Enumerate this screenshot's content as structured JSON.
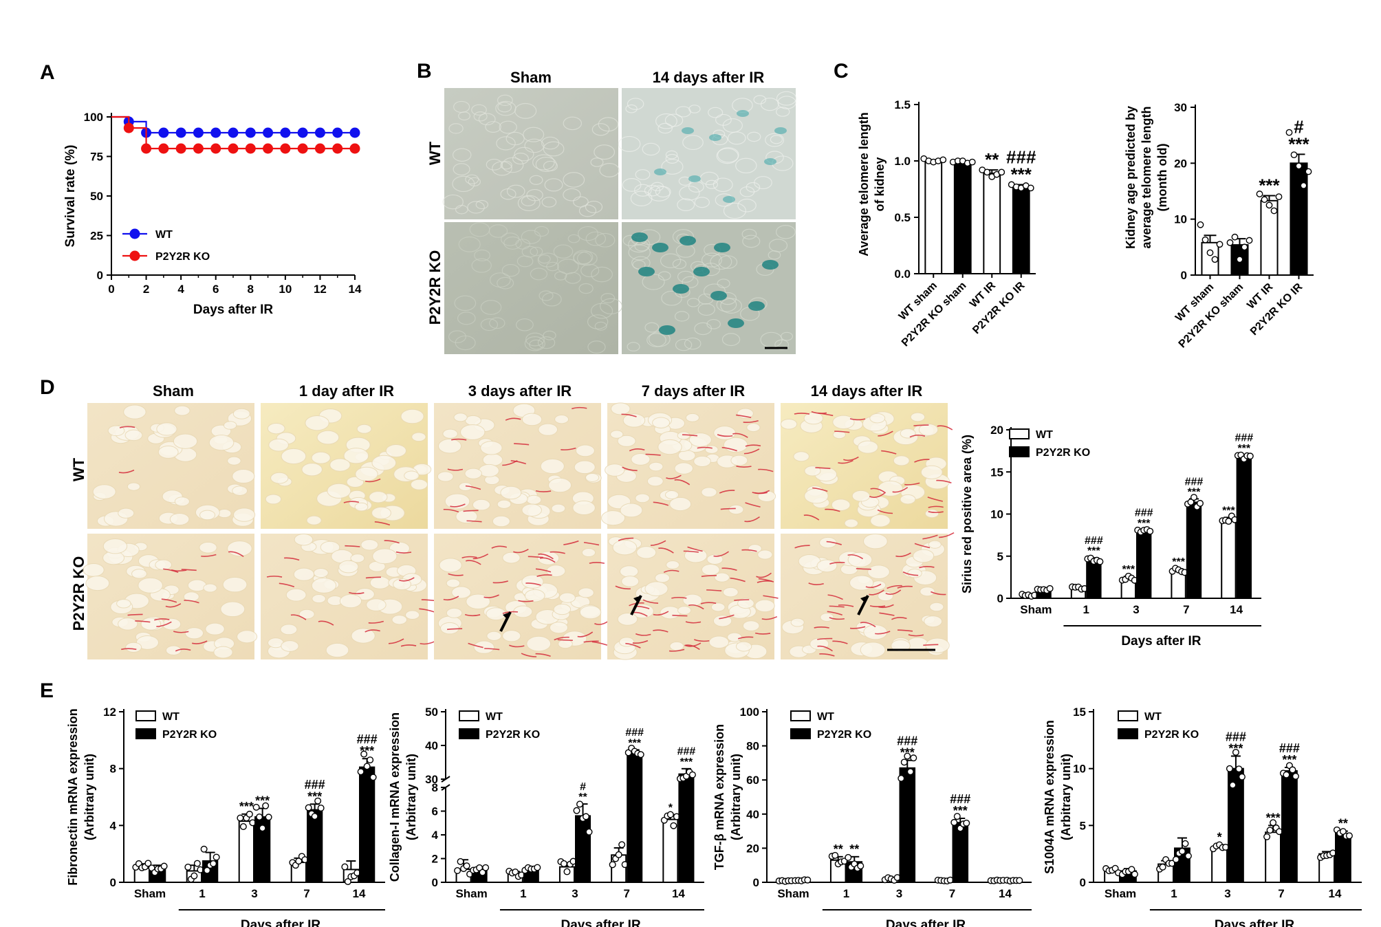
{
  "panel_labels": [
    "A",
    "B",
    "C",
    "D",
    "E"
  ],
  "panelB": {
    "col_headers": [
      "Sham",
      "14 days after IR"
    ],
    "row_headers": [
      "WT",
      "P2Y2R KO"
    ]
  },
  "panelD": {
    "col_headers": [
      "Sham",
      "1 day after IR",
      "3 days after IR",
      "7 days after IR",
      "14 days after IR"
    ],
    "row_headers": [
      "WT",
      "P2Y2R KO"
    ]
  },
  "colors": {
    "wt_line": "#1010ee",
    "ko_line": "#ee1111",
    "bar_ko": "#000000",
    "bar_wt": "#ffffff",
    "sirius_red": "#d42a3a",
    "xgal_blue": "#3aa6a8"
  },
  "chart_data": [
    {
      "id": "A",
      "type": "line",
      "xlabel": "Days after IR",
      "ylabel": "Survival rate (%)",
      "xlim": [
        0,
        14
      ],
      "ylim": [
        0,
        100
      ],
      "xticks": [
        "0",
        "2",
        "4",
        "6",
        "8",
        "10",
        "12",
        "14"
      ],
      "yticks": [
        "0",
        "25",
        "50",
        "75",
        "100"
      ],
      "legend": "bottom-left",
      "series": [
        {
          "name": "WT",
          "color": "#1010ee",
          "x": [
            1,
            2,
            3,
            4,
            5,
            6,
            7,
            8,
            9,
            10,
            11,
            12,
            13,
            14
          ],
          "y": [
            97,
            90,
            90,
            90,
            90,
            90,
            90,
            90,
            90,
            90,
            90,
            90,
            90,
            90
          ]
        },
        {
          "name": "P2Y2R KO",
          "color": "#ee1111",
          "x": [
            1,
            2,
            3,
            4,
            5,
            6,
            7,
            8,
            9,
            10,
            11,
            12,
            13,
            14
          ],
          "y": [
            93,
            80,
            80,
            80,
            80,
            80,
            80,
            80,
            80,
            80,
            80,
            80,
            80,
            80
          ]
        }
      ]
    },
    {
      "id": "C1",
      "type": "bar",
      "ylabel": "Average telomere length of kidney",
      "ylim": [
        0,
        1.5
      ],
      "yticks": [
        "0.0",
        "0.5",
        "1.0",
        "1.5"
      ],
      "categories": [
        "WT sham",
        "P2Y2R KO sham",
        "WT IR",
        "P2Y2R KO IR"
      ],
      "values": [
        1.0,
        0.99,
        0.89,
        0.77
      ],
      "errors": [
        0.01,
        0.01,
        0.03,
        0.02
      ],
      "annotations": [
        "",
        "",
        "**",
        "###\n***"
      ],
      "points": [
        [
          1.02,
          1.0,
          0.99,
          1.0,
          1.01
        ],
        [
          0.99,
          1.0,
          1.0,
          0.98,
          0.99
        ],
        [
          0.92,
          0.9,
          0.86,
          0.88,
          0.9
        ],
        [
          0.79,
          0.77,
          0.76,
          0.78,
          0.76
        ]
      ]
    },
    {
      "id": "C2",
      "type": "bar",
      "ylabel": "Kidney age predicted by average telomere length (month old)",
      "ylim": [
        0,
        30
      ],
      "yticks": [
        "0",
        "10",
        "20",
        "30"
      ],
      "categories": [
        "WT sham",
        "P2Y2R KO sham",
        "WT IR",
        "P2Y2R KO IR"
      ],
      "values": [
        5.8,
        5.4,
        13.3,
        20.0
      ],
      "errors": [
        1.3,
        1.1,
        0.9,
        1.6
      ],
      "annotations": [
        "",
        "",
        "***",
        "#\n***"
      ],
      "points": [
        [
          9.0,
          6.3,
          4.0,
          2.8,
          5.5
        ],
        [
          5.8,
          6.8,
          2.8,
          5.0,
          6.2
        ],
        [
          14.5,
          13.5,
          12.5,
          11.5,
          14.0
        ],
        [
          25.5,
          21.5,
          19.5,
          16.0,
          18.5
        ]
      ]
    },
    {
      "id": "D",
      "type": "bar",
      "ylabel": "Sirius red positive area (%)",
      "xlabel": "Days after IR",
      "ylim": [
        0,
        20
      ],
      "yticks": [
        "0",
        "5",
        "10",
        "15",
        "20"
      ],
      "categories": [
        "Sham",
        "1",
        "3",
        "7",
        "14"
      ],
      "legend": "top-left",
      "series": [
        {
          "name": "WT",
          "values": [
            0.4,
            1.2,
            2.4,
            3.3,
            9.3
          ],
          "errors": [
            0.1,
            0.1,
            0.2,
            0.2,
            0.3
          ],
          "annotations": [
            "",
            "",
            "***",
            "***",
            "***"
          ]
        },
        {
          "name": "P2Y2R KO",
          "values": [
            1.0,
            4.6,
            8.0,
            11.4,
            16.8
          ],
          "errors": [
            0.1,
            0.2,
            0.1,
            0.4,
            0.2
          ],
          "annotations": [
            "",
            "###\n***",
            "###\n***",
            "###\n***",
            "###\n***"
          ]
        }
      ]
    },
    {
      "id": "E1",
      "type": "bar",
      "ylabel": "Fibronectin mRNA expression (Arbitrary unit)",
      "xlabel": "Days after IR",
      "ylim": [
        0,
        12
      ],
      "yticks": [
        "0",
        "4",
        "8",
        "12"
      ],
      "categories": [
        "Sham",
        "1",
        "3",
        "7",
        "14"
      ],
      "legend": "top-left",
      "series": [
        {
          "name": "WT",
          "values": [
            1.0,
            0.8,
            4.3,
            1.4,
            0.9
          ],
          "errors": [
            0.3,
            0.4,
            0.5,
            0.3,
            0.6
          ],
          "annotations": [
            "",
            "",
            "***",
            "",
            ""
          ]
        },
        {
          "name": "P2Y2R KO",
          "values": [
            1.0,
            1.5,
            4.6,
            5.1,
            8.1
          ],
          "errors": [
            0.2,
            0.6,
            0.6,
            0.4,
            0.6
          ],
          "annotations": [
            "",
            "",
            "***",
            "###\n***",
            "###\n***"
          ]
        }
      ]
    },
    {
      "id": "E2",
      "type": "bar",
      "ylabel": "Collagen-I mRNA expression (Arbitrary unit)",
      "xlabel": "Days after IR",
      "ylim_lower": [
        0,
        8
      ],
      "ylim_upper": [
        30,
        50
      ],
      "yticks": [
        "0",
        "2",
        "4",
        "6",
        "8",
        "30",
        "40",
        "50"
      ],
      "categories": [
        "Sham",
        "1",
        "3",
        "7",
        "14"
      ],
      "legend": "top-left",
      "series": [
        {
          "name": "WT",
          "values": [
            1.1,
            0.7,
            1.3,
            2.3,
            5.3
          ],
          "errors": [
            0.8,
            0.2,
            0.3,
            0.6,
            0.4
          ],
          "annotations": [
            "",
            "",
            "",
            "",
            "*"
          ]
        },
        {
          "name": "P2Y2R KO",
          "values": [
            1.0,
            1.1,
            5.6,
            37.5,
            31.5
          ],
          "errors": [
            0.2,
            0.1,
            1.0,
            1.2,
            1.6
          ],
          "annotations": [
            "",
            "",
            "#\n**",
            "###\n***",
            "###\n***"
          ]
        }
      ]
    },
    {
      "id": "E3",
      "type": "bar",
      "ylabel": "TGF-β mRNA expression (Arbitrary unit)",
      "xlabel": "Days after IR",
      "ylim": [
        0,
        100
      ],
      "yticks": [
        "0",
        "20",
        "40",
        "60",
        "80",
        "100"
      ],
      "categories": [
        "Sham",
        "1",
        "3",
        "7",
        "14"
      ],
      "legend": "top-left",
      "series": [
        {
          "name": "WT",
          "values": [
            1.0,
            13.0,
            2.0,
            1.0,
            1.0
          ],
          "errors": [
            0.3,
            2.0,
            0.6,
            0.2,
            0.2
          ],
          "annotations": [
            "",
            "**",
            "",
            "",
            ""
          ]
        },
        {
          "name": "P2Y2R KO",
          "values": [
            1.0,
            12.0,
            67.0,
            35.0,
            1.0
          ],
          "errors": [
            0.3,
            3.0,
            4.5,
            2.5,
            0.2
          ],
          "annotations": [
            "",
            "**",
            "###\n***",
            "###\n***",
            ""
          ]
        }
      ]
    },
    {
      "id": "E4",
      "type": "bar",
      "ylabel": "S1004A mRNA expression (Arbitrary unit)",
      "xlabel": "Days after IR",
      "ylim": [
        0,
        15
      ],
      "yticks": [
        "0",
        "5",
        "10",
        "15"
      ],
      "categories": [
        "Sham",
        "1",
        "3",
        "7",
        "14"
      ],
      "legend": "top-left",
      "series": [
        {
          "name": "WT",
          "values": [
            1.0,
            1.6,
            3.1,
            4.4,
            2.5
          ],
          "errors": [
            0.2,
            0.3,
            0.2,
            0.6,
            0.2
          ],
          "annotations": [
            "",
            "",
            "*",
            "***",
            ""
          ]
        },
        {
          "name": "P2Y2R KO",
          "values": [
            1.0,
            3.0,
            10.0,
            9.8,
            4.3
          ],
          "errors": [
            0.2,
            0.9,
            1.1,
            0.3,
            0.2
          ],
          "annotations": [
            "",
            "",
            "###\n***",
            "###\n***",
            "**"
          ]
        }
      ]
    }
  ]
}
